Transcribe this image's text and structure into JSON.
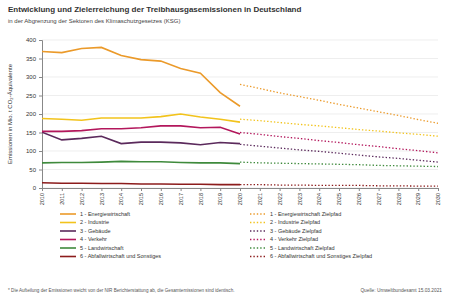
{
  "chart_data": {
    "type": "line",
    "title": "Entwicklung und Zielerreichung der Treibhausgasemissionen in Deutschland",
    "subtitle": "in der Abgrenzung der Sektoren des Klimaschutzgesetzes (KSG)",
    "y_label": "Emissionen in Mio. t CO₂-Äquivalente",
    "footnote": "* Die Aufteilung der Emissionen weicht von der NIR Berichterstattung ab, die Gesamtemissionen sind identisch.",
    "source": "Quelle: Umweltbundesamt 15.03.2021",
    "x": [
      2010,
      2011,
      2012,
      2013,
      2014,
      2015,
      2016,
      2017,
      2018,
      2019,
      2020,
      2021,
      2022,
      2023,
      2024,
      2025,
      2026,
      2027,
      2028,
      2029,
      2030
    ],
    "xlim": [
      2010,
      2030
    ],
    "xticks": [
      2010,
      2011,
      2012,
      2013,
      2014,
      2015,
      2016,
      2017,
      2018,
      2019,
      2020,
      2021,
      2022,
      2023,
      2024,
      2025,
      2026,
      2027,
      2028,
      2029,
      2030
    ],
    "ylim": [
      0,
      400
    ],
    "yticks": [
      0,
      50,
      100,
      150,
      200,
      250,
      300,
      350,
      400
    ],
    "grid": true,
    "legend": "bottom",
    "series": [
      {
        "name": "1 - Energiewirtschaft",
        "color": "#eb9a2a",
        "line_style": "solid",
        "values": [
          369,
          366,
          377,
          380,
          358,
          347,
          343,
          323,
          310,
          258,
          221,
          null,
          null,
          null,
          null,
          null,
          null,
          null,
          null,
          null,
          null
        ]
      },
      {
        "name": "2 - Industrie",
        "color": "#f2c31c",
        "line_style": "solid",
        "values": [
          188,
          186,
          183,
          189,
          189,
          189,
          193,
          200,
          192,
          186,
          178,
          null,
          null,
          null,
          null,
          null,
          null,
          null,
          null,
          null,
          null
        ]
      },
      {
        "name": "3 - Gebäude",
        "color": "#5b2a5c",
        "line_style": "solid",
        "values": [
          151,
          130,
          134,
          140,
          120,
          124,
          124,
          122,
          117,
          123,
          120,
          null,
          null,
          null,
          null,
          null,
          null,
          null,
          null,
          null,
          null
        ]
      },
      {
        "name": "4 - Verkehr",
        "color": "#b3175c",
        "line_style": "solid",
        "values": [
          153,
          153,
          155,
          160,
          160,
          163,
          168,
          168,
          163,
          164,
          146,
          null,
          null,
          null,
          null,
          null,
          null,
          null,
          null,
          null,
          null
        ]
      },
      {
        "name": "5 - Landwirtschaft",
        "color": "#3f8a3c",
        "line_style": "solid",
        "values": [
          68,
          69,
          69,
          70,
          72,
          71,
          71,
          69,
          68,
          68,
          66,
          null,
          null,
          null,
          null,
          null,
          null,
          null,
          null,
          null,
          null
        ]
      },
      {
        "name": "6 - Abfallwirtschaft und Sonstiges",
        "color": "#8c1c1c",
        "line_style": "solid",
        "values": [
          14,
          13,
          13,
          12,
          12,
          11,
          11,
          10,
          10,
          9,
          9,
          null,
          null,
          null,
          null,
          null,
          null,
          null,
          null,
          null,
          null
        ]
      },
      {
        "name": "1 - Energiewirtschaft Zielpfad",
        "color": "#eb9a2a",
        "line_style": "dotted",
        "values": [
          null,
          null,
          null,
          null,
          null,
          null,
          null,
          null,
          null,
          null,
          280,
          269,
          257,
          247,
          237,
          226,
          216,
          206,
          196,
          185,
          175
        ]
      },
      {
        "name": "2 - Industrie Zielpfad",
        "color": "#f2c31c",
        "line_style": "dotted",
        "values": [
          null,
          null,
          null,
          null,
          null,
          null,
          null,
          null,
          null,
          null,
          186,
          182,
          177,
          172,
          168,
          163,
          158,
          154,
          149,
          145,
          140
        ]
      },
      {
        "name": "3 - Gebäude Zielpfad",
        "color": "#5b2a5c",
        "line_style": "dotted",
        "values": [
          null,
          null,
          null,
          null,
          null,
          null,
          null,
          null,
          null,
          null,
          118,
          113,
          108,
          103,
          99,
          94,
          89,
          84,
          80,
          75,
          70
        ]
      },
      {
        "name": "4 - Verkehr Zielpfad",
        "color": "#b3175c",
        "line_style": "dotted",
        "values": [
          null,
          null,
          null,
          null,
          null,
          null,
          null,
          null,
          null,
          null,
          150,
          145,
          139,
          134,
          128,
          123,
          117,
          112,
          106,
          101,
          95
        ]
      },
      {
        "name": "5 - Landwirtschaft Zielpfad",
        "color": "#3f8a3c",
        "line_style": "dotted",
        "values": [
          null,
          null,
          null,
          null,
          null,
          null,
          null,
          null,
          null,
          null,
          70,
          68,
          67,
          66,
          65,
          64,
          63,
          61,
          60,
          59,
          58
        ]
      },
      {
        "name": "6 - Abfallwirtschaft und Sonstiges Zielpfad",
        "color": "#8c1c1c",
        "line_style": "dotted",
        "values": [
          null,
          null,
          null,
          null,
          null,
          null,
          null,
          null,
          null,
          null,
          9,
          9,
          8,
          8,
          7,
          7,
          7,
          6,
          6,
          5,
          5
        ]
      }
    ]
  }
}
